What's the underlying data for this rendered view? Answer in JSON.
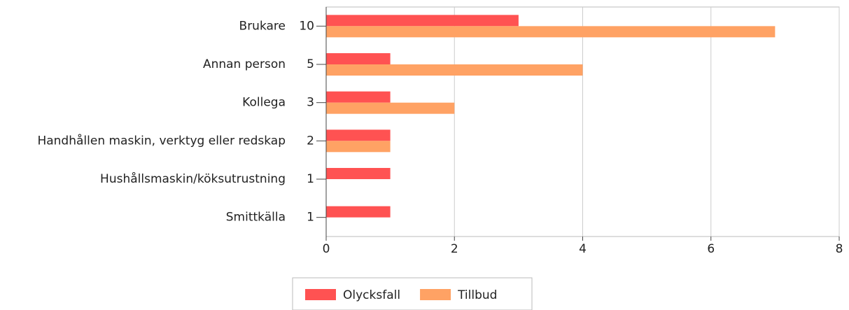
{
  "chart_data": {
    "type": "hbar",
    "categories": [
      "Brukare",
      "Annan person",
      "Kollega",
      "Handhållen maskin, verktyg eller redskap",
      "Hushållsmaskin/köksutrustning",
      "Smittkälla"
    ],
    "totals": [
      10,
      5,
      3,
      2,
      1,
      1
    ],
    "series": [
      {
        "name": "Olycksfall",
        "color": "#ff5252",
        "values": [
          3,
          1,
          1,
          1,
          1,
          1
        ]
      },
      {
        "name": "Tillbud",
        "color": "#ffa264",
        "values": [
          7,
          4,
          2,
          1,
          0,
          0
        ]
      }
    ],
    "xlim": [
      0,
      8
    ],
    "xticks": [
      0,
      2,
      4,
      6,
      8
    ],
    "grid": true,
    "legend": "bottom"
  }
}
